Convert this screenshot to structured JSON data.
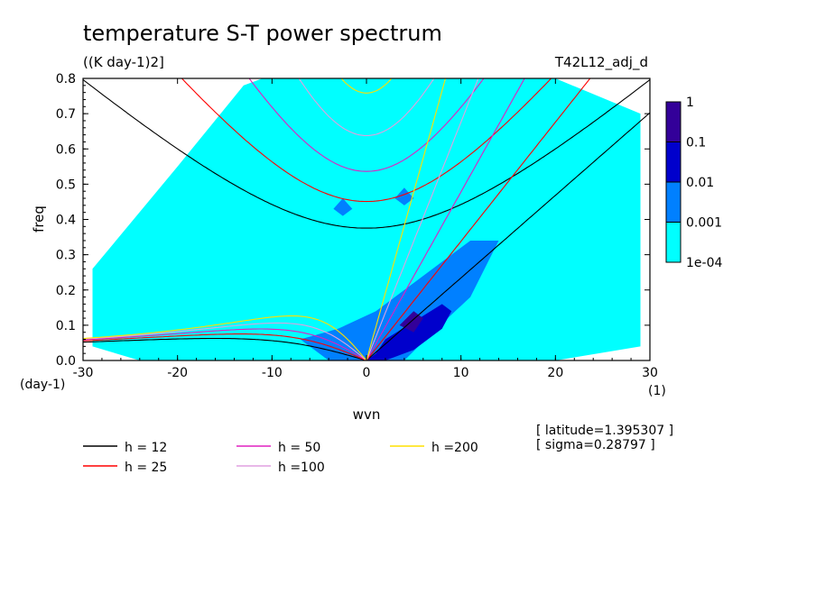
{
  "chart_data": {
    "type": "heatmap",
    "title": "temperature S-T power spectrum",
    "units": "((K day-1)2]",
    "experiment": "T42L12_adj_d",
    "xlabel": "wvn",
    "ylabel": "freq",
    "x_unit": "(1)",
    "y_unit": "(day-1)",
    "xlim": [
      -30,
      30
    ],
    "ylim": [
      0,
      0.8
    ],
    "xticks": [
      -30,
      -20,
      -10,
      0,
      10,
      20,
      30
    ],
    "yticks": [
      0.0,
      0.1,
      0.2,
      0.3,
      0.4,
      0.5,
      0.6,
      0.7,
      0.8
    ],
    "ytick_labels": [
      "0.0",
      "0.1",
      "0.2",
      "0.3",
      "0.4",
      "0.5",
      "0.6",
      "0.7",
      "0.8"
    ],
    "colorbar": {
      "scale": "log",
      "levels": [
        0.0001,
        0.001,
        0.01,
        0.1,
        1
      ],
      "labels": [
        "1e-04",
        "0.001",
        "0.01",
        "0.1",
        "1"
      ],
      "colors": [
        "#00ffff",
        "#0080ff",
        "#0000cc",
        "#330099"
      ]
    },
    "colors": {
      "h12": "#000000",
      "h25": "#ff0000",
      "h50": "#e020c0",
      "h100": "#e0a0e0",
      "h200": "#ffe000"
    },
    "legend": [
      {
        "label": "h = 12",
        "color": "#000000"
      },
      {
        "label": "h = 25",
        "color": "#ff0000"
      },
      {
        "label": "h = 50",
        "color": "#e020c0"
      },
      {
        "label": "h =100",
        "color": "#e0a0e0"
      },
      {
        "label": "h =200",
        "color": "#ffe000"
      }
    ],
    "info": [
      "[ latitude=1.395307 ]",
      "[ sigma=0.28797 ]"
    ],
    "spectrum_regions": [
      {
        "level": 0.0001,
        "x": [
          -13.0,
          -11.0,
          -7.0,
          -3.0,
          0.0,
          6.0,
          11.0,
          16.0,
          20.0,
          29.0,
          29.0,
          20.0,
          13.0,
          7.0,
          3.0,
          0.0,
          -5.0,
          -12.0,
          -18.0,
          -24.0,
          -29.0,
          -29.0,
          -20.0
        ],
        "y": [
          0.78,
          0.8,
          0.8,
          0.8,
          0.8,
          0.8,
          0.8,
          0.8,
          0.8,
          0.7,
          0.04,
          0.0,
          0.0,
          0.0,
          0.0,
          0.0,
          0.0,
          0.0,
          0.0,
          0.0,
          0.04,
          0.26,
          0.55
        ]
      },
      {
        "level": 0.001,
        "x": [
          -7.0,
          -3.0,
          1.0,
          7.0,
          11.0,
          14.0,
          11.0,
          7.0,
          4.0,
          0.0,
          -4.0
        ],
        "y": [
          0.06,
          0.09,
          0.14,
          0.26,
          0.34,
          0.34,
          0.18,
          0.08,
          0.0,
          0.0,
          0.0
        ]
      },
      {
        "level": 0.001,
        "x": [
          -3.5,
          -2.5,
          -1.5,
          -2.5
        ],
        "y": [
          0.43,
          0.46,
          0.43,
          0.41
        ]
      },
      {
        "level": 0.001,
        "x": [
          3.0,
          4.0,
          5.0,
          4.0
        ],
        "y": [
          0.46,
          0.49,
          0.46,
          0.44
        ]
      },
      {
        "level": 0.01,
        "x": [
          2.0,
          5.0,
          8.0,
          9.0,
          8.0,
          5.0,
          2.0,
          0.0,
          1.0
        ],
        "y": [
          0.06,
          0.11,
          0.16,
          0.14,
          0.09,
          0.03,
          0.0,
          0.0,
          0.02
        ]
      },
      {
        "level": 0.1,
        "x": [
          3.5,
          5.0,
          6.0,
          5.0
        ],
        "y": [
          0.1,
          0.14,
          0.12,
          0.08
        ]
      }
    ]
  }
}
